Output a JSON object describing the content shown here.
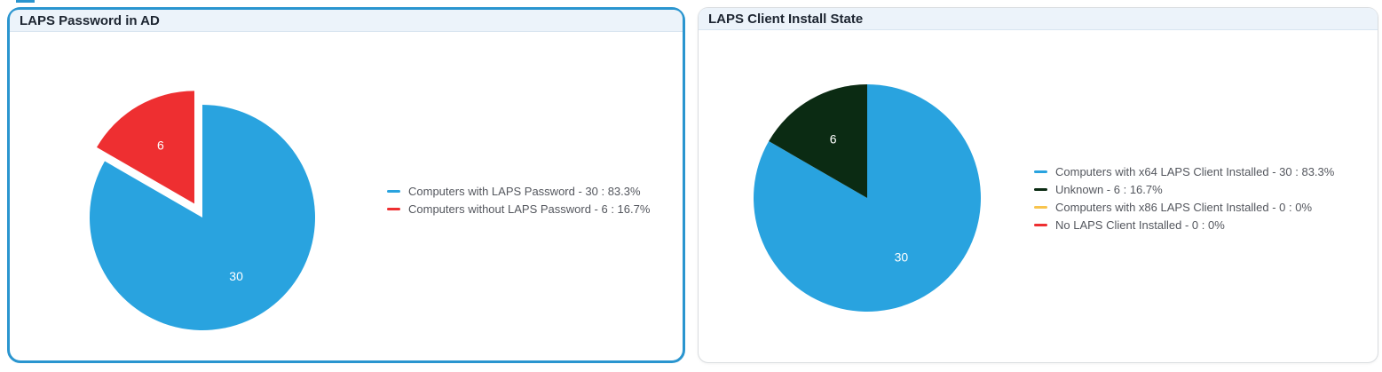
{
  "panels": [
    {
      "title": "LAPS Password in AD",
      "selected": true,
      "legend": [
        {
          "label": "Computers with LAPS Password - 30 : 83.3%",
          "color": "#29a3df"
        },
        {
          "label": "Computers without LAPS Password - 6 : 16.7%",
          "color": "#ee2f31"
        }
      ]
    },
    {
      "title": "LAPS Client Install State",
      "selected": false,
      "legend": [
        {
          "label": "Computers with x64 LAPS Client Installed - 30 : 83.3%",
          "color": "#29a3df"
        },
        {
          "label": "Unknown - 6 : 16.7%",
          "color": "#0b2b13"
        },
        {
          "label": "Computers with x86 LAPS Client Installed - 0 : 0%",
          "color": "#f8c44d"
        },
        {
          "label": "No LAPS Client Installed - 0 : 0%",
          "color": "#ee2f31"
        }
      ]
    }
  ],
  "colors": {
    "selected_panel_border": "#2a95cf",
    "panel_header_background": "#ecf3fa",
    "legend_text": "#54575e"
  },
  "chart_data": [
    {
      "type": "pie",
      "title": "LAPS Password in AD",
      "categories": [
        "Computers with LAPS Password",
        "Computers without LAPS Password"
      ],
      "values": [
        30,
        6
      ],
      "percent_labels": [
        "83.3%",
        "16.7%"
      ],
      "slice_labels": [
        "30",
        "6"
      ],
      "colors": [
        "#29a3df",
        "#ee2f31"
      ],
      "start_angle": "12-o-clock",
      "direction": "clockwise",
      "exploded_slice": 1,
      "legend_position": "right"
    },
    {
      "type": "pie",
      "title": "LAPS Client Install State",
      "categories": [
        "Computers with x64 LAPS Client Installed",
        "Unknown",
        "Computers with x86 LAPS Client Installed",
        "No LAPS Client Installed"
      ],
      "values": [
        30,
        6,
        0,
        0
      ],
      "percent_labels": [
        "83.3%",
        "16.7%",
        "0%",
        "0%"
      ],
      "slice_labels": [
        "30",
        "6",
        "",
        ""
      ],
      "colors": [
        "#29a3df",
        "#0b2b13",
        "#f8c44d",
        "#ee2f31"
      ],
      "start_angle": "12-o-clock",
      "direction": "clockwise",
      "exploded_slice": null,
      "legend_position": "right"
    }
  ]
}
